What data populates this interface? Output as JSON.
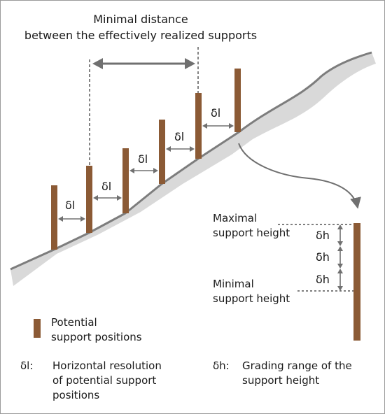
{
  "colors": {
    "post": "#8b5a35",
    "terrain_fill": "#d9d9d9",
    "terrain_edge": "#7d7d7d",
    "arrow": "#707070",
    "text": "#1a1a1a"
  },
  "title_lines": [
    "Minimal distance",
    "between the effectively realized supports"
  ],
  "spacing_symbol": "δl",
  "height_symbol": "δh",
  "max_height_lines": [
    "Maximal",
    "support height"
  ],
  "min_height_lines": [
    "Minimal",
    "support height"
  ],
  "legend": {
    "post_label_lines": [
      "Potential",
      "support positions"
    ],
    "dl": {
      "symbol": "δl:",
      "lines": [
        "Horizontal resolution",
        "of potential support",
        "positions"
      ]
    },
    "dh": {
      "symbol": "δh:",
      "lines": [
        "Grading range of the",
        "support height"
      ]
    }
  }
}
